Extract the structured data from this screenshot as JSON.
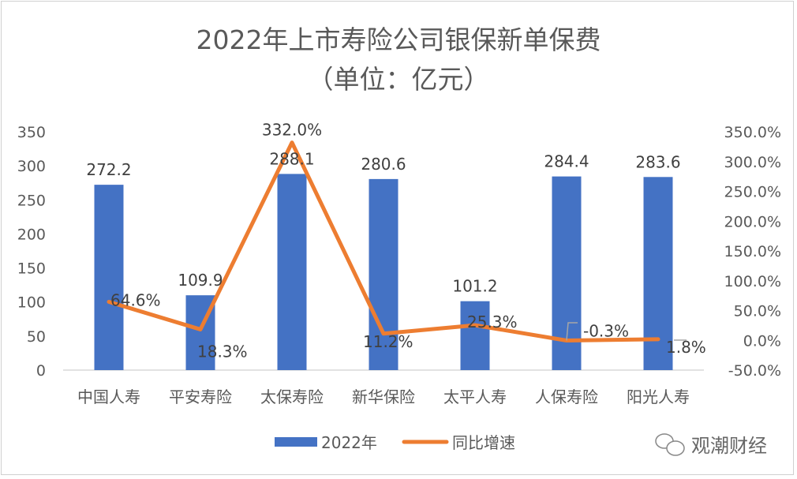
{
  "chart_data": {
    "type": "bar+line",
    "title": "2022年上市寿险公司银保新单保费",
    "subtitle": "（单位：亿元）",
    "categories": [
      "中国人寿",
      "平安寿险",
      "太保寿险",
      "新华保险",
      "太平人寿",
      "人保寿险",
      "阳光人寿"
    ],
    "series": [
      {
        "name": "2022年",
        "type": "bar",
        "axis": "left",
        "values": [
          272.2,
          109.9,
          288.1,
          280.6,
          101.2,
          284.4,
          283.6
        ],
        "labels": [
          "272.2",
          "109.9",
          "288.1",
          "280.6",
          "101.2",
          "284.4",
          "283.6"
        ],
        "color": "#4472c4"
      },
      {
        "name": "同比增速",
        "type": "line",
        "axis": "right",
        "values": [
          64.6,
          18.3,
          332.0,
          11.2,
          25.3,
          -0.3,
          1.8
        ],
        "labels": [
          "64.6%",
          "18.3%",
          "332.0%",
          "11.2%",
          "25.3%",
          "-0.3%",
          "1.8%"
        ],
        "color": "#ed7d31"
      }
    ],
    "y_left": {
      "range": [
        0,
        350
      ],
      "ticks": [
        "0",
        "50",
        "100",
        "150",
        "200",
        "250",
        "300",
        "350"
      ]
    },
    "y_right": {
      "range": [
        -50,
        350
      ],
      "ticks": [
        "-50.0%",
        "0.0%",
        "50.0%",
        "100.0%",
        "150.0%",
        "200.0%",
        "250.0%",
        "300.0%",
        "350.0%"
      ]
    },
    "grid": false,
    "legend_position": "bottom"
  },
  "watermark": "观潮财经"
}
